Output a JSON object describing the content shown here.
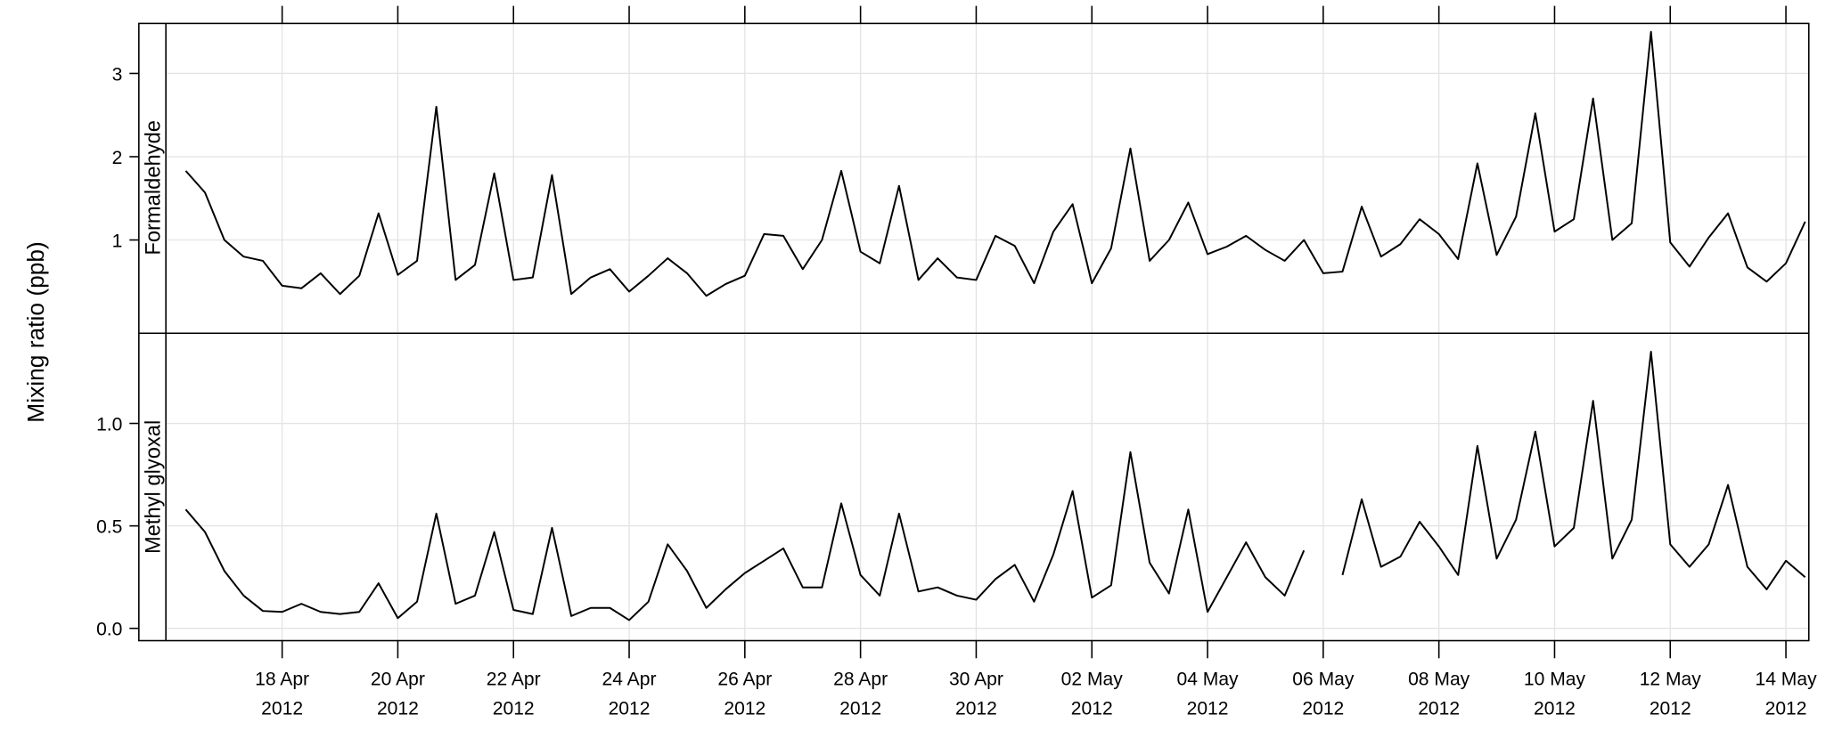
{
  "chart_data": {
    "type": "line",
    "ylabel": "Mixing ratio (ppb)",
    "xlabel": "",
    "grid": true,
    "time_start": "2012-04-16T08:00",
    "interval_hours": 8,
    "x_ticks": [
      {
        "date": "2012-04-18",
        "line1": "18 Apr",
        "line2": "2012"
      },
      {
        "date": "2012-04-20",
        "line1": "20 Apr",
        "line2": "2012"
      },
      {
        "date": "2012-04-22",
        "line1": "22 Apr",
        "line2": "2012"
      },
      {
        "date": "2012-04-24",
        "line1": "24 Apr",
        "line2": "2012"
      },
      {
        "date": "2012-04-26",
        "line1": "26 Apr",
        "line2": "2012"
      },
      {
        "date": "2012-04-28",
        "line1": "28 Apr",
        "line2": "2012"
      },
      {
        "date": "2012-04-30",
        "line1": "30 Apr",
        "line2": "2012"
      },
      {
        "date": "2012-05-02",
        "line1": "02 May",
        "line2": "2012"
      },
      {
        "date": "2012-05-04",
        "line1": "04 May",
        "line2": "2012"
      },
      {
        "date": "2012-05-06",
        "line1": "06 May",
        "line2": "2012"
      },
      {
        "date": "2012-05-08",
        "line1": "08 May",
        "line2": "2012"
      },
      {
        "date": "2012-05-10",
        "line1": "10 May",
        "line2": "2012"
      },
      {
        "date": "2012-05-12",
        "line1": "12 May",
        "line2": "2012"
      },
      {
        "date": "2012-05-14",
        "line1": "14 May",
        "line2": "2012"
      }
    ],
    "panels": [
      {
        "name": "Formaldehyde",
        "y_ticks": [
          {
            "value": 1,
            "label": "1"
          },
          {
            "value": 2,
            "label": "2"
          },
          {
            "value": 3,
            "label": "3"
          }
        ],
        "ylim": [
          -0.12,
          3.6
        ],
        "values": [
          1.83,
          1.57,
          1.0,
          0.8,
          0.75,
          0.45,
          0.42,
          0.6,
          0.35,
          0.57,
          1.32,
          0.58,
          0.75,
          2.6,
          0.52,
          0.7,
          1.8,
          0.52,
          0.55,
          1.78,
          0.35,
          0.55,
          0.65,
          0.38,
          0.57,
          0.78,
          0.6,
          0.33,
          0.47,
          0.57,
          1.07,
          1.05,
          0.65,
          1.0,
          1.83,
          0.86,
          0.72,
          1.65,
          0.52,
          0.78,
          0.55,
          0.52,
          1.05,
          0.93,
          0.48,
          1.1,
          1.43,
          0.48,
          0.9,
          2.1,
          0.75,
          1.0,
          1.45,
          0.83,
          0.92,
          1.05,
          0.88,
          0.75,
          1.0,
          0.6,
          0.62,
          1.4,
          0.8,
          0.95,
          1.25,
          1.07,
          0.77,
          1.92,
          0.82,
          1.28,
          2.52,
          1.1,
          1.25,
          2.7,
          1.0,
          1.2,
          3.5,
          0.97,
          0.68,
          1.03,
          1.32,
          0.67,
          0.5,
          0.72,
          1.22
        ]
      },
      {
        "name": "Methyl glyoxal",
        "y_ticks": [
          {
            "value": 0,
            "label": "0.0"
          },
          {
            "value": 0.5,
            "label": "0.5"
          },
          {
            "value": 1.0,
            "label": "1.0"
          }
        ],
        "ylim": [
          -0.06,
          1.44
        ],
        "values": [
          0.58,
          0.47,
          0.28,
          0.16,
          0.085,
          0.08,
          0.12,
          0.08,
          0.07,
          0.08,
          0.22,
          0.05,
          0.13,
          0.56,
          0.12,
          0.16,
          0.47,
          0.09,
          0.07,
          0.49,
          0.06,
          0.1,
          0.1,
          0.04,
          0.13,
          0.41,
          0.28,
          0.1,
          0.19,
          0.27,
          0.33,
          0.39,
          0.2,
          0.2,
          0.61,
          0.26,
          0.16,
          0.56,
          0.18,
          0.2,
          0.16,
          0.14,
          0.24,
          0.31,
          0.13,
          0.36,
          0.67,
          0.15,
          0.21,
          0.86,
          0.32,
          0.17,
          0.58,
          0.08,
          0.25,
          0.42,
          0.25,
          0.16,
          0.38,
          null,
          0.26,
          0.63,
          0.3,
          0.35,
          0.52,
          0.4,
          0.26,
          0.89,
          0.34,
          0.53,
          0.96,
          0.4,
          0.49,
          1.11,
          0.34,
          0.53,
          1.35,
          0.41,
          0.3,
          0.41,
          0.7,
          0.3,
          0.19,
          0.33,
          0.25
        ]
      }
    ]
  }
}
